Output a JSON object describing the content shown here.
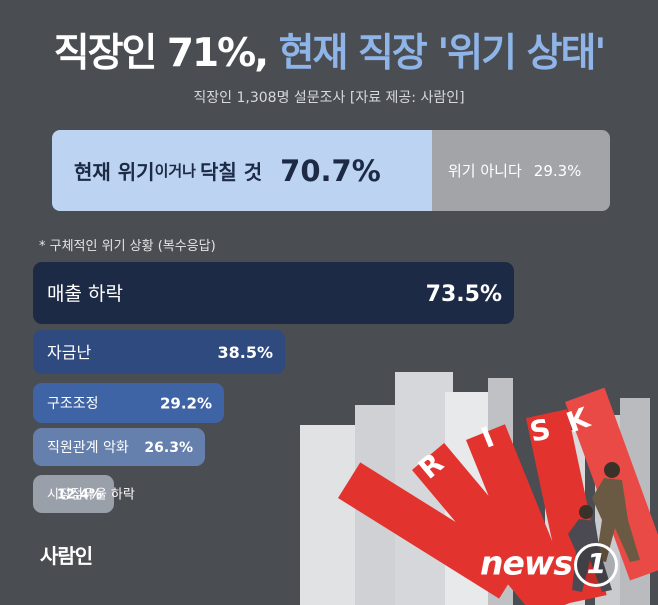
{
  "header": {
    "title_main": "직장인 71%,",
    "title_accent": "현재 직장 '위기 상태'",
    "subtitle": "직장인 1,308명 설문조사 [자료 제공: 사람인]"
  },
  "summary": {
    "crisis_label_1": "현재 위기",
    "crisis_label_mid": "이거나",
    "crisis_label_2": "닥칠 것",
    "crisis_value": "70.7%",
    "crisis_share": 70.7,
    "not_crisis_label": "위기 아니다",
    "not_crisis_value": "29.3%",
    "not_crisis_share": 29.3,
    "colors": {
      "crisis": "#bcd3f1",
      "not_crisis": "#a2a4a7"
    }
  },
  "chart_data": {
    "type": "bar",
    "orientation": "horizontal",
    "note": "* 구체적인 위기 상황 (복수응답)",
    "categories": [
      "매출 하락",
      "자금난",
      "구조조정",
      "직원관계 악화",
      "시장점유율 하락"
    ],
    "values": [
      73.5,
      38.5,
      29.2,
      26.3,
      12.4
    ],
    "value_labels": [
      "73.5%",
      "38.5%",
      "29.2%",
      "26.3%",
      "12.4%"
    ],
    "unit": "%",
    "colors": [
      "#1c2a45",
      "#2e4a7e",
      "#3f64a6",
      "#6680ae",
      "#9aa0aa"
    ]
  },
  "illustration": {
    "domino_letters": [
      "R",
      "I",
      "S",
      "K"
    ],
    "colors": {
      "domino": "#e3332f",
      "building": "#d9dadc"
    }
  },
  "footer": {
    "logo": "사람인",
    "watermark": "news",
    "watermark_badge": "1"
  }
}
